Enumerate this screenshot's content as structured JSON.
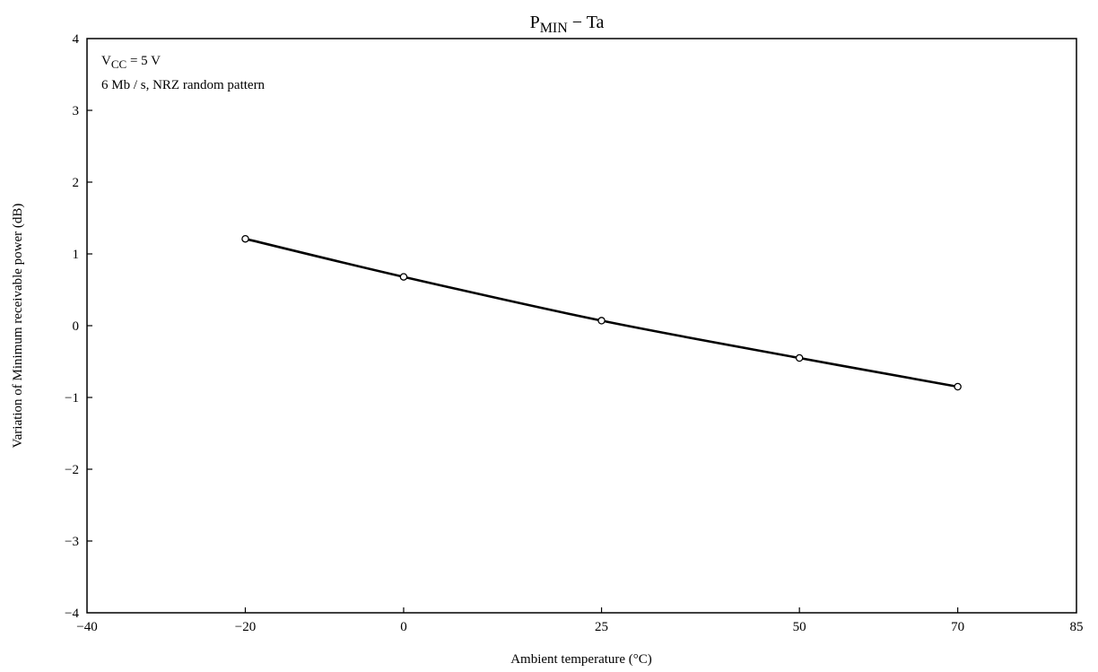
{
  "chart_data": {
    "type": "line",
    "title": {
      "main": "P",
      "sub": "MIN",
      "rest": " − Ta"
    },
    "xlabel": "Ambient temperature   (°C)",
    "ylabel": "Variation of Minimum receivable power   (dB)",
    "annotations": {
      "line1_main": "V",
      "line1_sub": "CC",
      "line1_rest": " = 5 V",
      "line2": "6 Mb / s,  NRZ  random pattern"
    },
    "x_ticks": [
      {
        "value": -40,
        "label": "−40"
      },
      {
        "value": -20,
        "label": "−20"
      },
      {
        "value": 0,
        "label": "0"
      },
      {
        "value": 25,
        "label": "25"
      },
      {
        "value": 50,
        "label": "50"
      },
      {
        "value": 70,
        "label": "70"
      },
      {
        "value": 85,
        "label": "85"
      }
    ],
    "y_ticks": [
      {
        "value": 4,
        "label": "4"
      },
      {
        "value": 3,
        "label": "3"
      },
      {
        "value": 2,
        "label": "2"
      },
      {
        "value": 1,
        "label": "1"
      },
      {
        "value": 0,
        "label": "0"
      },
      {
        "value": -1,
        "label": "−1"
      },
      {
        "value": -2,
        "label": "−2"
      },
      {
        "value": -3,
        "label": "−3"
      },
      {
        "value": -4,
        "label": "−4"
      }
    ],
    "xlim": [
      -40,
      85
    ],
    "ylim": [
      -4,
      4
    ],
    "grid": false,
    "series": [
      {
        "x": [
          -20,
          0,
          25,
          50,
          70
        ],
        "y": [
          1.21,
          0.68,
          0.07,
          -0.45,
          -0.85
        ]
      }
    ],
    "line_color": "#000000"
  }
}
